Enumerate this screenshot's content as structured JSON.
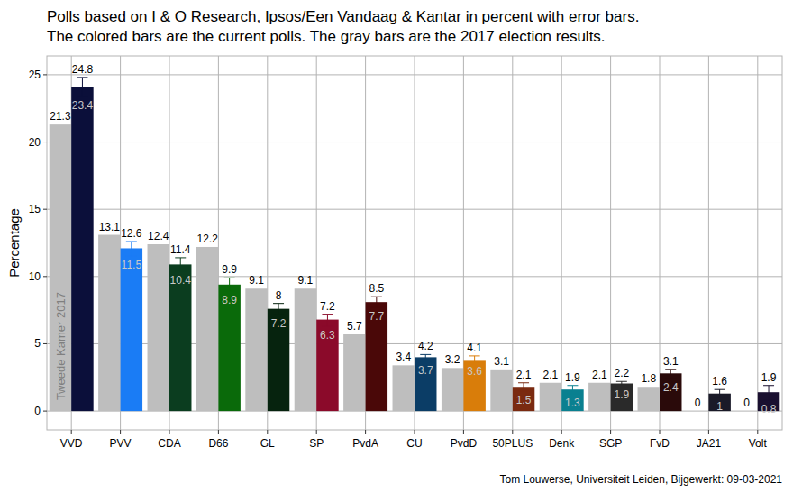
{
  "chart_data": {
    "type": "bar",
    "title": "Polls based on I & O Research, Ipsos/Een Vandaag & Kantar in percent with error bars.",
    "subtitle": "The colored bars are the current polls. The gray bars are the 2017 election results.",
    "y_label": "Percentage",
    "annotations": [
      "Tom Louwerse, Universiteit Leiden, Bijgewerkt: 09-03-2021"
    ],
    "categories": [
      "VVD",
      "PVV",
      "CDA",
      "D66",
      "GL",
      "SP",
      "PvdA",
      "CU",
      "PvdD",
      "50PLUS",
      "Denk",
      "SGP",
      "FvD",
      "JA21",
      "Volt"
    ],
    "series": [
      {
        "name": "Tweede Kamer 2017",
        "color": "#bebebe",
        "data_labels": true,
        "values": [
          21.3,
          13.1,
          12.4,
          12.2,
          9.1,
          9.1,
          5.7,
          3.4,
          3.2,
          3.1,
          2.1,
          2.1,
          1.8,
          0,
          0
        ]
      },
      {
        "colors": [
          "#0b0f3a",
          "#1a7cf5",
          "#0b3d1f",
          "#0a6a0a",
          "#06230e",
          "#8b0a2a",
          "#4a0808",
          "#0b3d66",
          "#d97d0a",
          "#7a2a10",
          "#0a8090",
          "#2a2a2a",
          "#2a0a0a",
          "#1a1a28",
          "#1a1030"
        ],
        "values": [
          24.1,
          12.1,
          10.9,
          9.4,
          7.6,
          6.8,
          8.1,
          4.0,
          3.8,
          1.8,
          1.6,
          2.05,
          2.8,
          1.3,
          1.4
        ],
        "lower": [
          23.4,
          11.5,
          10.4,
          8.9,
          7.2,
          6.3,
          7.7,
          3.7,
          3.6,
          1.5,
          1.3,
          1.9,
          2.4,
          1,
          0.8
        ],
        "upper": [
          24.8,
          12.6,
          11.4,
          9.9,
          8,
          7.2,
          8.5,
          4.2,
          4.1,
          2.1,
          1.9,
          2.2,
          3.1,
          1.6,
          1.9
        ]
      }
    ],
    "ylim": [
      -1.4,
      26.4
    ],
    "yticks": [
      0,
      5,
      10,
      15,
      20,
      25
    ],
    "grid": true
  }
}
